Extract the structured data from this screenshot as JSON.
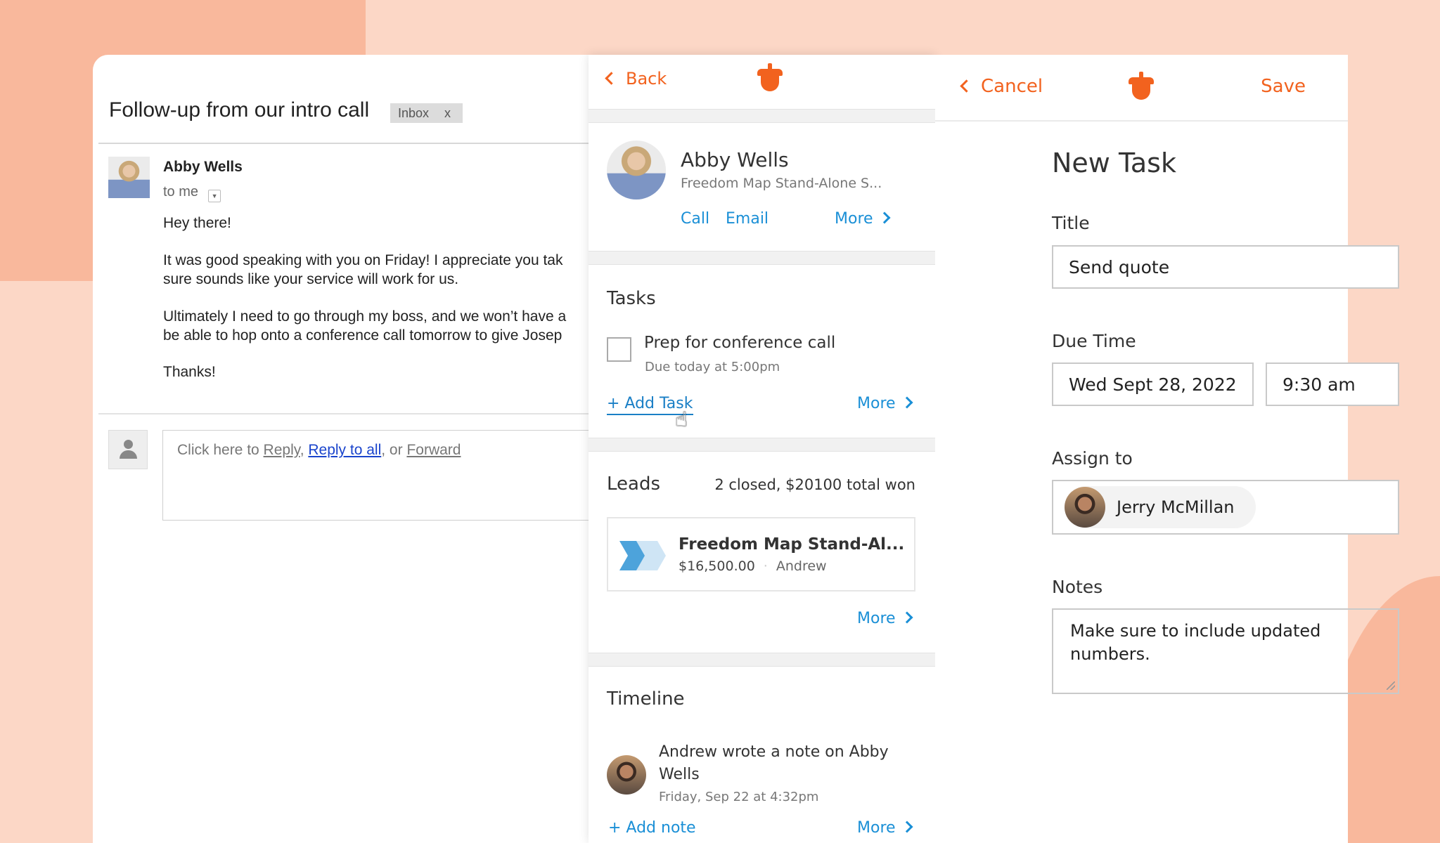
{
  "email": {
    "subject": "Follow-up from our intro call",
    "label": "Inbox",
    "label_close": "x",
    "sender": "Abby Wells",
    "recipient": "to me",
    "body": [
      "Hey there!",
      "It was good speaking with you on Friday! I appreciate you tak",
      "sure sounds like your service will work for us.",
      "Ultimately I need to go through my boss, and we won’t have a",
      "be able to hop onto a conference call tomorrow to give Josep",
      "Thanks!"
    ],
    "reply": {
      "prefix": "Click here to ",
      "reply": "Reply",
      "sep1": ", ",
      "reply_all": "Reply to all",
      "sep2": ", or ",
      "forward": "Forward"
    }
  },
  "contact_panel": {
    "back": "Back",
    "name": "Abby Wells",
    "subtitle": "Freedom Map Stand-Alone S...",
    "actions": {
      "call": "Call",
      "email": "Email",
      "more": "More"
    },
    "tasks": {
      "title": "Tasks",
      "items": [
        {
          "title": "Prep for conference call",
          "due": "Due today at 5:00pm",
          "checked": false
        }
      ],
      "add": "+ Add Task",
      "more": "More"
    },
    "leads": {
      "title": "Leads",
      "summary": "2 closed, $20100 total won",
      "items": [
        {
          "name": "Freedom Map Stand-Al...",
          "amount": "$16,500.00",
          "owner": "Andrew"
        }
      ],
      "more": "More"
    },
    "timeline": {
      "title": "Timeline",
      "items": [
        {
          "line1": "Andrew wrote a note on Abby",
          "line2": "Wells",
          "date": "Friday, Sep 22 at 4:32pm"
        }
      ],
      "add": "+ Add note",
      "more": "More"
    }
  },
  "task_form": {
    "cancel": "Cancel",
    "save": "Save",
    "heading": "New Task",
    "title_label": "Title",
    "title_value": "Send quote",
    "due_label": "Due Time",
    "due_date": "Wed Sept 28, 2022",
    "due_time": "9:30 am",
    "assign_label": "Assign to",
    "assignee": "Jerry McMillan",
    "notes_label": "Notes",
    "notes_value": "Make sure to include updated numbers."
  },
  "colors": {
    "accent": "#f2621e",
    "link": "#1a8fd6",
    "background": "#fcd7c6"
  }
}
